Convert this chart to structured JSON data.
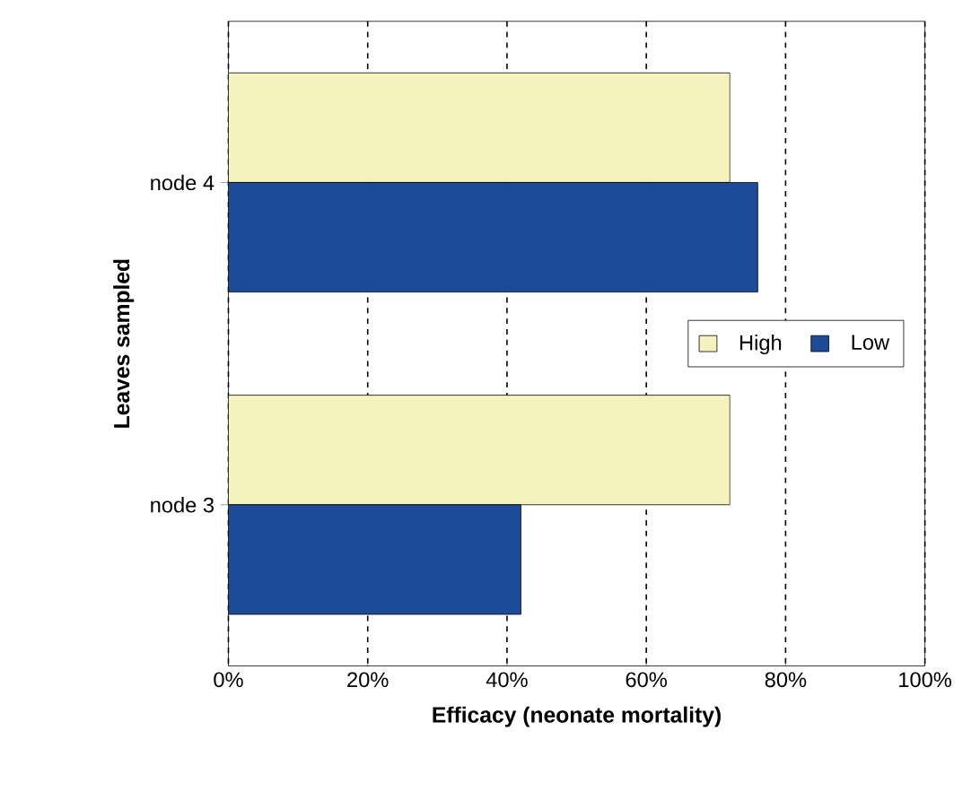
{
  "chart_data": {
    "type": "bar",
    "orientation": "horizontal",
    "xlabel": "Efficacy (neonate mortality)",
    "ylabel": "Leaves sampled",
    "categories": [
      "node 4",
      "node 3"
    ],
    "series": [
      {
        "name": "High",
        "color": "#f5f3bd",
        "values": [
          72,
          72
        ]
      },
      {
        "name": "Low",
        "color": "#1c4b97",
        "values": [
          76,
          42
        ]
      }
    ],
    "xlim": [
      0,
      100
    ],
    "xticks": [
      {
        "value": 0,
        "label": "0%"
      },
      {
        "value": 20,
        "label": "20%"
      },
      {
        "value": 40,
        "label": "40%"
      },
      {
        "value": 60,
        "label": "60%"
      },
      {
        "value": 80,
        "label": "80%"
      },
      {
        "value": 100,
        "label": "100%"
      }
    ],
    "grid": "x",
    "legend": "right"
  }
}
